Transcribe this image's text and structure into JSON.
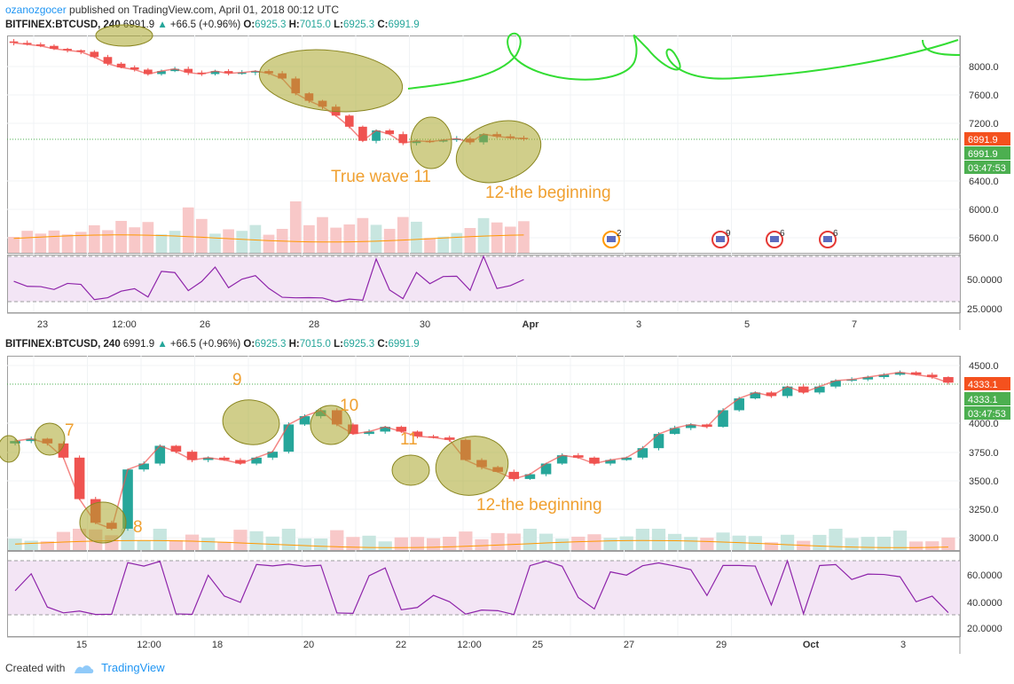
{
  "header": {
    "author": "ozanozgocer",
    "rest": " published on TradingView.com, April 01, 2018 00:12 UTC"
  },
  "legend": {
    "symbol": "BITFINEX:BTCUSD, 240",
    "last": "6991.9",
    "change": "+66.5 (+0.96%)",
    "o_label": "O:",
    "o": "6925.3",
    "h_label": "H:",
    "h": "7015.0",
    "l_label": "L:",
    "l": "6925.3",
    "c_label": "C:",
    "c": "6991.9"
  },
  "footer": {
    "created": "Created with",
    "brand": "TradingView"
  },
  "colors": {
    "up": "#26a69a",
    "down": "#ef5350",
    "rsi": "#8e24aa",
    "annotation_fill": "#a9a52a",
    "annotation_text": "#f0a030",
    "path": "#33dd33",
    "price_tag": "#f4511e",
    "price_tag_green": "#4caf50"
  },
  "chart_data": [
    {
      "type": "candlestick",
      "panel": "top",
      "price_axis": {
        "ticks": [
          8000,
          7600,
          7200,
          6400,
          6000,
          5600
        ],
        "tick_labels": [
          "8000.0",
          "7600.0",
          "7200.0",
          "6400.0",
          "6000.0",
          "5600.0"
        ]
      },
      "price_tags": [
        "6991.9",
        "6991.9",
        "03:47:53"
      ],
      "rsi_axis": {
        "tick_labels": [
          "50.0000",
          "25.0000"
        ]
      },
      "x_ticks": [
        "23",
        "12:00",
        "26",
        "28",
        "30",
        "Apr",
        "3",
        "5",
        "7"
      ],
      "close_path": [
        8280,
        8260,
        8240,
        8200,
        8180,
        8160,
        8090,
        8000,
        7950,
        7920,
        7860,
        7900,
        7930,
        7880,
        7860,
        7900,
        7870,
        7880,
        7900,
        7870,
        7800,
        7600,
        7500,
        7420,
        7300,
        7150,
        6960,
        7100,
        7050,
        6930,
        6960,
        6950,
        6970,
        6990,
        6940,
        7050,
        7020,
        7000,
        6991.9
      ],
      "events_badges": [
        "2",
        "9",
        "6",
        "6"
      ],
      "annotations": [
        "True wave 11",
        "12-the beginning"
      ]
    },
    {
      "type": "candlestick",
      "panel": "bottom",
      "price_axis": {
        "ticks": [
          4500,
          4000,
          3750,
          3500,
          3250,
          3000
        ],
        "tick_labels": [
          "4500.0",
          "4000.0",
          "3750.0",
          "3500.0",
          "3250.0",
          "3000.0"
        ]
      },
      "price_tags": [
        "4333.1",
        "4333.1",
        "03:47:53"
      ],
      "rsi_axis": {
        "tick_labels": [
          "60.0000",
          "40.0000",
          "20.0000"
        ]
      },
      "x_ticks": [
        "15",
        "12:00",
        "18",
        "20",
        "22",
        "12:00",
        "25",
        "27",
        "29",
        "Oct",
        "3"
      ],
      "close_path": [
        3840,
        3860,
        3820,
        3700,
        3350,
        3150,
        3100,
        3600,
        3650,
        3800,
        3750,
        3680,
        3700,
        3680,
        3650,
        3700,
        3750,
        3980,
        4050,
        4100,
        3980,
        3900,
        3920,
        3960,
        3920,
        3880,
        3870,
        3850,
        3680,
        3620,
        3580,
        3520,
        3560,
        3650,
        3720,
        3700,
        3650,
        3680,
        3700,
        3780,
        3900,
        3950,
        3980,
        3960,
        4100,
        4200,
        4250,
        4220,
        4300,
        4250,
        4300,
        4350,
        4360,
        4380,
        4400,
        4420,
        4400,
        4380,
        4333.1
      ],
      "annotations": [
        "7",
        "8",
        "9",
        "10",
        "11",
        "12-the beginning"
      ]
    }
  ]
}
